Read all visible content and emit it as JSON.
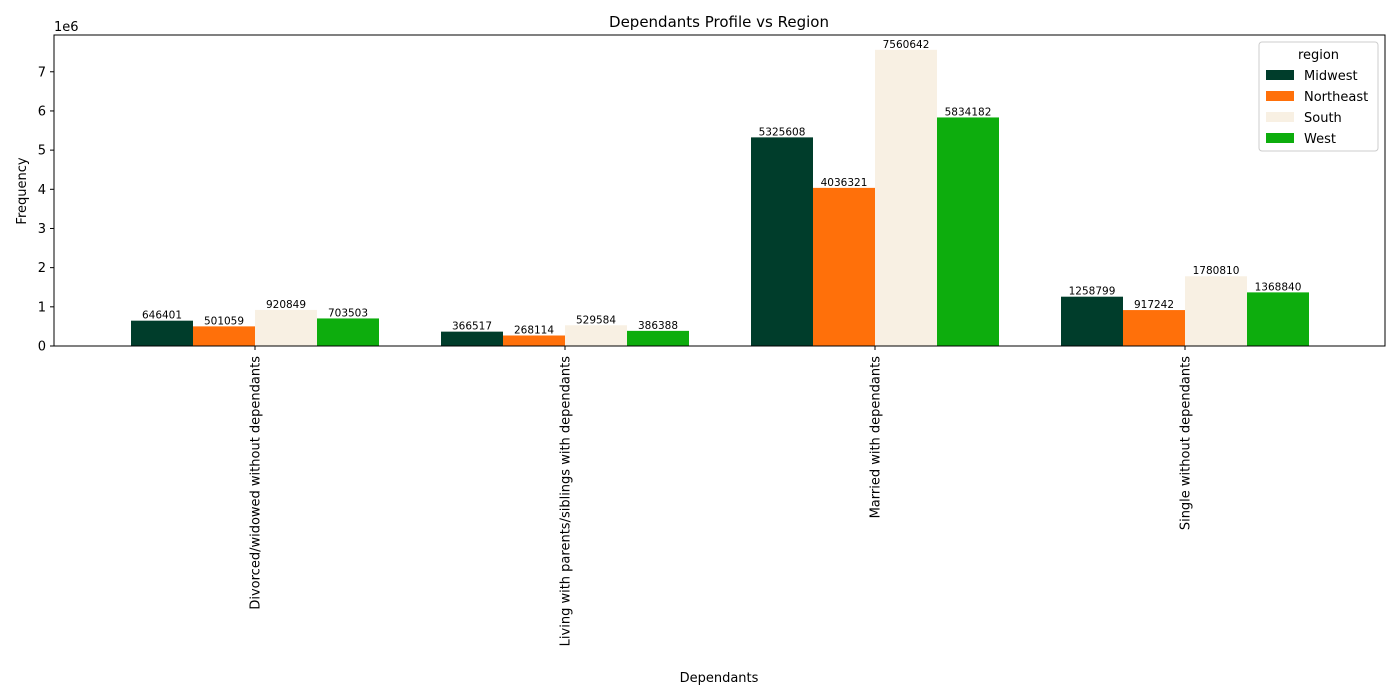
{
  "chart_data": {
    "type": "bar",
    "title": "Dependants Profile vs Region",
    "xlabel": "Dependants",
    "ylabel": "Frequency",
    "y_offset_label": "1e6",
    "y_scale": 1000000,
    "ylim": [
      0,
      7938674
    ],
    "yticks": [
      0,
      1,
      2,
      3,
      4,
      5,
      6,
      7
    ],
    "grid": false,
    "legend": {
      "title": "region",
      "placement": "top-right"
    },
    "categories": [
      "Divorced/widowed without dependants",
      "Living with parents/siblings with dependants",
      "Married with dependants",
      "Single without dependants"
    ],
    "series": [
      {
        "name": "Midwest",
        "color": "#003d2b",
        "values": [
          646401,
          366517,
          5325608,
          1258799
        ]
      },
      {
        "name": "Northeast",
        "color": "#ff700a",
        "values": [
          501059,
          268114,
          4036321,
          917242
        ]
      },
      {
        "name": "South",
        "color": "#f8f0e3",
        "values": [
          920849,
          529584,
          7560642,
          1780810
        ]
      },
      {
        "name": "West",
        "color": "#0dad0d",
        "values": [
          703503,
          386388,
          5834182,
          1368840
        ]
      }
    ]
  }
}
